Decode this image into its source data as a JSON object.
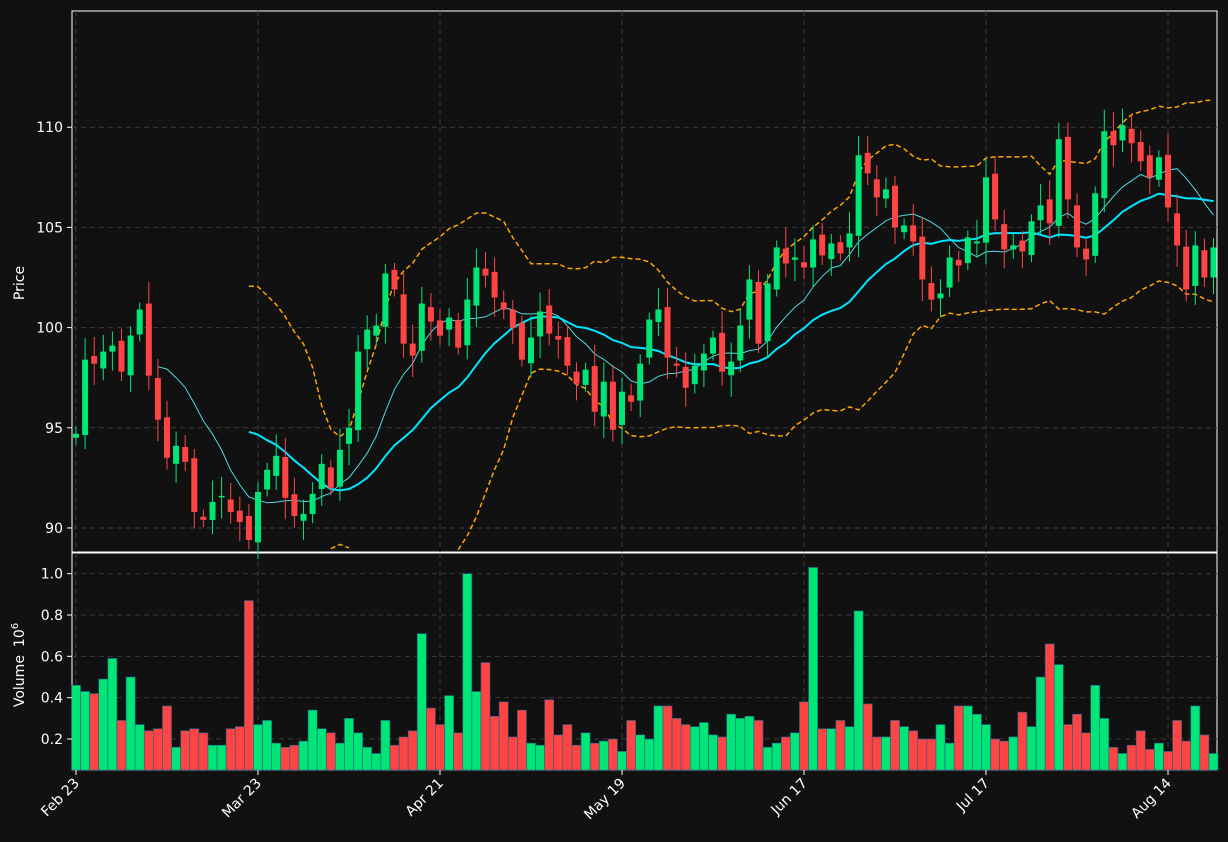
{
  "chart_data": {
    "type": "candlestick",
    "price_panel": {
      "ylabel": "Price",
      "ylim": [
        88.8,
        115.8
      ],
      "yticks": [
        90,
        95,
        100,
        105,
        110
      ],
      "grid": true
    },
    "volume_panel": {
      "ylabel": "Volume",
      "ylabel_exponent": "10^6",
      "ylim": [
        0.05,
        1.1
      ],
      "yticks": [
        0.2,
        0.4,
        0.6,
        0.8,
        1.0
      ],
      "grid": true
    },
    "x_tick_labels": [
      {
        "label": "Feb 23",
        "index": 0
      },
      {
        "label": "Mar 23",
        "index": 20
      },
      {
        "label": "Apr 21",
        "index": 40
      },
      {
        "label": "May 19",
        "index": 60
      },
      {
        "label": "Jun 17",
        "index": 80
      },
      {
        "label": "Jul 17",
        "index": 100
      },
      {
        "label": "Aug 14",
        "index": 120
      }
    ],
    "n_periods": 126,
    "candle_closes": [
      94.7,
      98.4,
      98.2,
      98.8,
      99.1,
      97.8,
      99.6,
      100.9,
      97.6,
      95.4,
      93.5,
      94.1,
      93.3,
      90.8,
      90.4,
      91.3,
      91.6,
      90.8,
      90.3,
      89.4,
      91.8,
      92.9,
      93.6,
      91.5,
      90.6,
      90.7,
      91.7,
      93.2,
      92.0,
      93.9,
      95.0,
      98.8,
      99.9,
      100.1,
      102.7,
      101.9,
      99.2,
      98.6,
      101.2,
      100.3,
      99.6,
      100.5,
      99.0,
      101.4,
      103.0,
      102.6,
      101.5,
      100.9,
      100.0,
      98.4,
      99.5,
      100.8,
      99.7,
      99.4,
      98.1,
      97.2,
      97.9,
      95.8,
      97.3,
      94.9,
      96.8,
      96.3,
      98.2,
      100.4,
      100.9,
      98.5,
      98.1,
      97.0,
      98.1,
      98.7,
      99.5,
      97.8,
      98.3,
      100.1,
      102.4,
      99.2,
      102.2,
      104.0,
      103.2,
      103.5,
      103.0,
      104.4,
      103.6,
      104.2,
      103.7,
      104.7,
      108.6,
      107.7,
      106.5,
      106.9,
      105.0,
      105.1,
      104.3,
      102.4,
      101.4,
      101.7,
      103.5,
      103.1,
      104.5,
      104.3,
      107.5,
      105.4,
      103.9,
      104.1,
      103.8,
      105.3,
      106.1,
      105.2,
      109.4,
      106.4,
      104.0,
      103.4,
      106.7,
      109.8,
      109.1,
      110.1,
      109.2,
      108.3,
      107.5,
      108.5,
      106.0,
      104.1,
      101.9,
      104.1,
      102.5,
      104.0
    ],
    "candle_colors": {
      "up": "#00e676",
      "down": "#ff4444"
    },
    "volume_values": [
      0.46,
      0.43,
      0.42,
      0.49,
      0.59,
      0.29,
      0.5,
      0.27,
      0.24,
      0.25,
      0.36,
      0.16,
      0.24,
      0.25,
      0.23,
      0.17,
      0.17,
      0.25,
      0.26,
      0.87,
      0.27,
      0.29,
      0.18,
      0.16,
      0.17,
      0.19,
      0.34,
      0.25,
      0.23,
      0.18,
      0.3,
      0.23,
      0.16,
      0.13,
      0.29,
      0.17,
      0.21,
      0.24,
      0.71,
      0.35,
      0.27,
      0.41,
      0.23,
      1.0,
      0.43,
      0.57,
      0.31,
      0.38,
      0.21,
      0.34,
      0.18,
      0.17,
      0.39,
      0.22,
      0.27,
      0.17,
      0.23,
      0.18,
      0.19,
      0.2,
      0.14,
      0.29,
      0.22,
      0.2,
      0.36,
      0.36,
      0.3,
      0.27,
      0.26,
      0.28,
      0.22,
      0.21,
      0.32,
      0.3,
      0.31,
      0.29,
      0.16,
      0.18,
      0.21,
      0.23,
      0.38,
      1.03,
      0.25,
      0.25,
      0.29,
      0.26,
      0.82,
      0.37,
      0.21,
      0.21,
      0.29,
      0.26,
      0.24,
      0.2,
      0.2,
      0.27,
      0.18,
      0.36,
      0.36,
      0.32,
      0.27,
      0.2,
      0.19,
      0.21,
      0.33,
      0.26,
      0.5,
      0.66,
      0.56,
      0.27,
      0.32,
      0.23,
      0.46,
      0.3,
      0.16,
      0.13,
      0.17,
      0.24,
      0.15,
      0.18,
      0.14,
      0.29,
      0.19,
      0.36,
      0.22,
      0.13
    ],
    "overlays": [
      {
        "kind": "moving-average-short",
        "color": "#4dd9e0",
        "style": "solid"
      },
      {
        "kind": "moving-average-long",
        "color": "#00e5ff",
        "style": "solid"
      },
      {
        "kind": "band-upper",
        "color": "#ffa500",
        "style": "dashed"
      },
      {
        "kind": "band-lower",
        "color": "#ffa500",
        "style": "dashed"
      }
    ]
  }
}
